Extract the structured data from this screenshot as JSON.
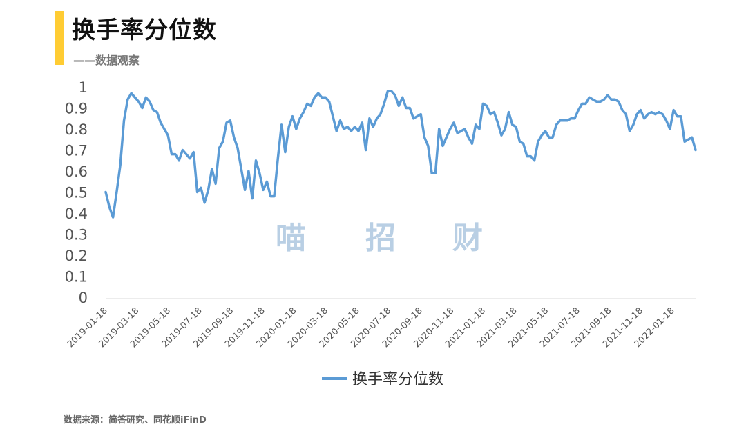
{
  "header": {
    "title": "换手率分位数",
    "subtitle": "——数据观察",
    "accent_color": "#FFCC33"
  },
  "watermark": [
    "喵",
    "招",
    "财"
  ],
  "source": "数据来源：简答研究、同花顺iFinD",
  "chart_data": {
    "type": "line",
    "title": "换手率分位数",
    "xlabel": "",
    "ylabel": "",
    "ylim": [
      0,
      1
    ],
    "yticks": [
      "0",
      "0.1",
      "0.2",
      "0.3",
      "0.4",
      "0.5",
      "0.6",
      "0.7",
      "0.8",
      "0.9",
      "1"
    ],
    "xtick_labels": [
      "2019-01-18",
      "2019-03-18",
      "2019-05-18",
      "2019-07-18",
      "2019-09-18",
      "2019-11-18",
      "2020-01-18",
      "2020-03-18",
      "2020-05-18",
      "2020-07-18",
      "2020-09-18",
      "2020-11-18",
      "2021-01-18",
      "2021-03-18",
      "2021-05-18",
      "2021-07-18",
      "2021-09-18",
      "2021-11-18",
      "2022-01-18"
    ],
    "grid": false,
    "legend_position": "bottom",
    "series": [
      {
        "name": "换手率分位数",
        "color": "#5B9BD5",
        "values": [
          0.5,
          0.43,
          0.38,
          0.5,
          0.63,
          0.84,
          0.94,
          0.97,
          0.95,
          0.93,
          0.9,
          0.95,
          0.93,
          0.89,
          0.88,
          0.83,
          0.8,
          0.77,
          0.68,
          0.68,
          0.65,
          0.7,
          0.68,
          0.66,
          0.69,
          0.5,
          0.52,
          0.45,
          0.51,
          0.61,
          0.54,
          0.71,
          0.74,
          0.83,
          0.84,
          0.76,
          0.71,
          0.61,
          0.51,
          0.6,
          0.47,
          0.65,
          0.59,
          0.51,
          0.55,
          0.48,
          0.48,
          0.66,
          0.82,
          0.69,
          0.81,
          0.86,
          0.8,
          0.85,
          0.88,
          0.92,
          0.91,
          0.95,
          0.97,
          0.95,
          0.95,
          0.93,
          0.86,
          0.79,
          0.84,
          0.8,
          0.81,
          0.79,
          0.81,
          0.79,
          0.83,
          0.7,
          0.85,
          0.81,
          0.85,
          0.87,
          0.92,
          0.98,
          0.98,
          0.96,
          0.91,
          0.95,
          0.9,
          0.9,
          0.85,
          0.86,
          0.87,
          0.76,
          0.72,
          0.59,
          0.59,
          0.8,
          0.72,
          0.76,
          0.8,
          0.83,
          0.78,
          0.79,
          0.8,
          0.76,
          0.73,
          0.82,
          0.8,
          0.92,
          0.91,
          0.87,
          0.88,
          0.83,
          0.77,
          0.8,
          0.88,
          0.82,
          0.81,
          0.74,
          0.73,
          0.67,
          0.67,
          0.65,
          0.74,
          0.77,
          0.79,
          0.76,
          0.76,
          0.82,
          0.84,
          0.84,
          0.84,
          0.85,
          0.85,
          0.89,
          0.92,
          0.92,
          0.95,
          0.94,
          0.93,
          0.93,
          0.94,
          0.96,
          0.94,
          0.94,
          0.93,
          0.89,
          0.87,
          0.79,
          0.82,
          0.87,
          0.89,
          0.85,
          0.87,
          0.88,
          0.87,
          0.88,
          0.87,
          0.84,
          0.8,
          0.89,
          0.86,
          0.86,
          0.74,
          0.75,
          0.76,
          0.7
        ]
      }
    ]
  }
}
